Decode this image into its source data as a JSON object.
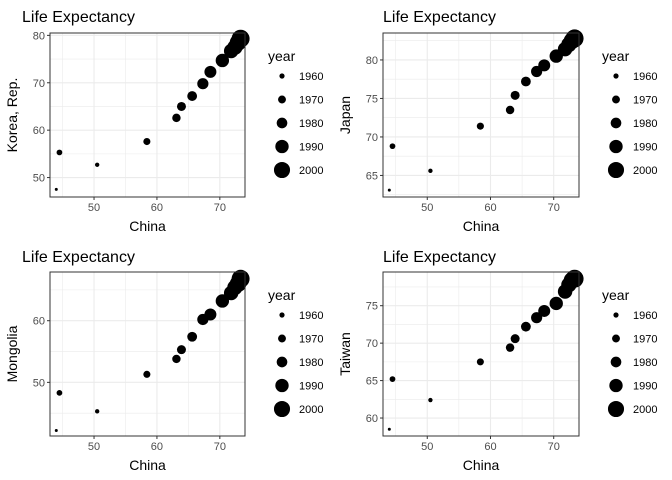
{
  "chart_data": [
    {
      "type": "scatter",
      "title": "Life Expectancy",
      "xlabel": "China",
      "ylabel": "Korea, Rep.",
      "xlim": [
        43,
        74
      ],
      "ylim": [
        45.9,
        80.5
      ],
      "xticks": [
        50,
        60,
        70
      ],
      "yticks": [
        50,
        60,
        70,
        80
      ],
      "grid": true,
      "size_legend": {
        "title": "year",
        "labels": [
          "1960",
          "1970",
          "1980",
          "1990",
          "2000"
        ],
        "values": [
          1960,
          1970,
          1980,
          1990,
          2000
        ]
      },
      "points": [
        {
          "year": 1952,
          "x": 44.0,
          "y": 47.5
        },
        {
          "year": 1957,
          "x": 50.5,
          "y": 52.7
        },
        {
          "year": 1962,
          "x": 44.5,
          "y": 55.3
        },
        {
          "year": 1967,
          "x": 58.4,
          "y": 57.6
        },
        {
          "year": 1972,
          "x": 63.1,
          "y": 62.6
        },
        {
          "year": 1974,
          "x": 63.9,
          "y": 65.0
        },
        {
          "year": 1977,
          "x": 65.6,
          "y": 67.2
        },
        {
          "year": 1982,
          "x": 67.3,
          "y": 69.8
        },
        {
          "year": 1985,
          "x": 68.5,
          "y": 72.3
        },
        {
          "year": 1990,
          "x": 70.4,
          "y": 74.7
        },
        {
          "year": 1994,
          "x": 71.8,
          "y": 76.7
        },
        {
          "year": 1997,
          "x": 72.4,
          "y": 77.5
        },
        {
          "year": 2002,
          "x": 72.9,
          "y": 78.5
        },
        {
          "year": 2007,
          "x": 73.3,
          "y": 79.3
        }
      ]
    },
    {
      "type": "scatter",
      "title": "Life Expectancy",
      "xlabel": "China",
      "ylabel": "Japan",
      "xlim": [
        43,
        74
      ],
      "ylim": [
        62.2,
        83.5
      ],
      "xticks": [
        50,
        60,
        70
      ],
      "yticks": [
        65,
        70,
        75,
        80
      ],
      "grid": true,
      "size_legend": {
        "title": "year",
        "labels": [
          "1960",
          "1970",
          "1980",
          "1990",
          "2000"
        ],
        "values": [
          1960,
          1970,
          1980,
          1990,
          2000
        ]
      },
      "points": [
        {
          "year": 1952,
          "x": 44.0,
          "y": 63.1
        },
        {
          "year": 1957,
          "x": 50.5,
          "y": 65.6
        },
        {
          "year": 1962,
          "x": 44.5,
          "y": 68.8
        },
        {
          "year": 1967,
          "x": 58.4,
          "y": 71.4
        },
        {
          "year": 1972,
          "x": 63.1,
          "y": 73.5
        },
        {
          "year": 1974,
          "x": 63.9,
          "y": 75.4
        },
        {
          "year": 1977,
          "x": 65.6,
          "y": 77.2
        },
        {
          "year": 1982,
          "x": 67.3,
          "y": 78.5
        },
        {
          "year": 1985,
          "x": 68.5,
          "y": 79.3
        },
        {
          "year": 1990,
          "x": 70.4,
          "y": 80.5
        },
        {
          "year": 1994,
          "x": 71.8,
          "y": 81.4
        },
        {
          "year": 1997,
          "x": 72.4,
          "y": 82.0
        },
        {
          "year": 2002,
          "x": 72.9,
          "y": 82.5
        },
        {
          "year": 2007,
          "x": 73.3,
          "y": 82.8
        }
      ]
    },
    {
      "type": "scatter",
      "title": "Life Expectancy",
      "xlabel": "China",
      "ylabel": "Mongolia",
      "xlim": [
        43,
        74
      ],
      "ylim": [
        41.3,
        67.9
      ],
      "xticks": [
        50,
        60,
        70
      ],
      "yticks": [
        50,
        60
      ],
      "grid": true,
      "size_legend": {
        "title": "year",
        "labels": [
          "1960",
          "1970",
          "1980",
          "1990",
          "2000"
        ],
        "values": [
          1960,
          1970,
          1980,
          1990,
          2000
        ]
      },
      "points": [
        {
          "year": 1952,
          "x": 44.0,
          "y": 42.2
        },
        {
          "year": 1957,
          "x": 50.5,
          "y": 45.3
        },
        {
          "year": 1962,
          "x": 44.5,
          "y": 48.3
        },
        {
          "year": 1967,
          "x": 58.4,
          "y": 51.3
        },
        {
          "year": 1972,
          "x": 63.1,
          "y": 53.8
        },
        {
          "year": 1974,
          "x": 63.9,
          "y": 55.3
        },
        {
          "year": 1977,
          "x": 65.6,
          "y": 57.4
        },
        {
          "year": 1982,
          "x": 67.3,
          "y": 60.2
        },
        {
          "year": 1985,
          "x": 68.5,
          "y": 61.0
        },
        {
          "year": 1990,
          "x": 70.4,
          "y": 63.2
        },
        {
          "year": 1994,
          "x": 71.8,
          "y": 64.5
        },
        {
          "year": 1997,
          "x": 72.4,
          "y": 65.4
        },
        {
          "year": 2002,
          "x": 72.9,
          "y": 66.0
        },
        {
          "year": 2007,
          "x": 73.3,
          "y": 66.8
        }
      ]
    },
    {
      "type": "scatter",
      "title": "Life Expectancy",
      "xlabel": "China",
      "ylabel": "Taiwan",
      "xlim": [
        43,
        74
      ],
      "ylim": [
        57.6,
        79.5
      ],
      "xticks": [
        50,
        60,
        70
      ],
      "yticks": [
        60,
        65,
        70,
        75
      ],
      "grid": true,
      "size_legend": {
        "title": "year",
        "labels": [
          "1960",
          "1970",
          "1980",
          "1990",
          "2000"
        ],
        "values": [
          1960,
          1970,
          1980,
          1990,
          2000
        ]
      },
      "points": [
        {
          "year": 1952,
          "x": 44.0,
          "y": 58.5
        },
        {
          "year": 1957,
          "x": 50.5,
          "y": 62.4
        },
        {
          "year": 1962,
          "x": 44.5,
          "y": 65.2
        },
        {
          "year": 1967,
          "x": 58.4,
          "y": 67.5
        },
        {
          "year": 1972,
          "x": 63.1,
          "y": 69.4
        },
        {
          "year": 1974,
          "x": 63.9,
          "y": 70.6
        },
        {
          "year": 1977,
          "x": 65.6,
          "y": 72.2
        },
        {
          "year": 1982,
          "x": 67.3,
          "y": 73.4
        },
        {
          "year": 1985,
          "x": 68.5,
          "y": 74.3
        },
        {
          "year": 1990,
          "x": 70.4,
          "y": 75.3
        },
        {
          "year": 1994,
          "x": 71.8,
          "y": 76.9
        },
        {
          "year": 1997,
          "x": 72.4,
          "y": 77.8
        },
        {
          "year": 2002,
          "x": 72.9,
          "y": 78.4
        },
        {
          "year": 2007,
          "x": 73.3,
          "y": 78.6
        }
      ]
    }
  ],
  "colors": {
    "point": "#000000",
    "grid": "#ebebeb",
    "axis_text": "#4d4d4d",
    "title": "#000000",
    "border": "#333333"
  }
}
